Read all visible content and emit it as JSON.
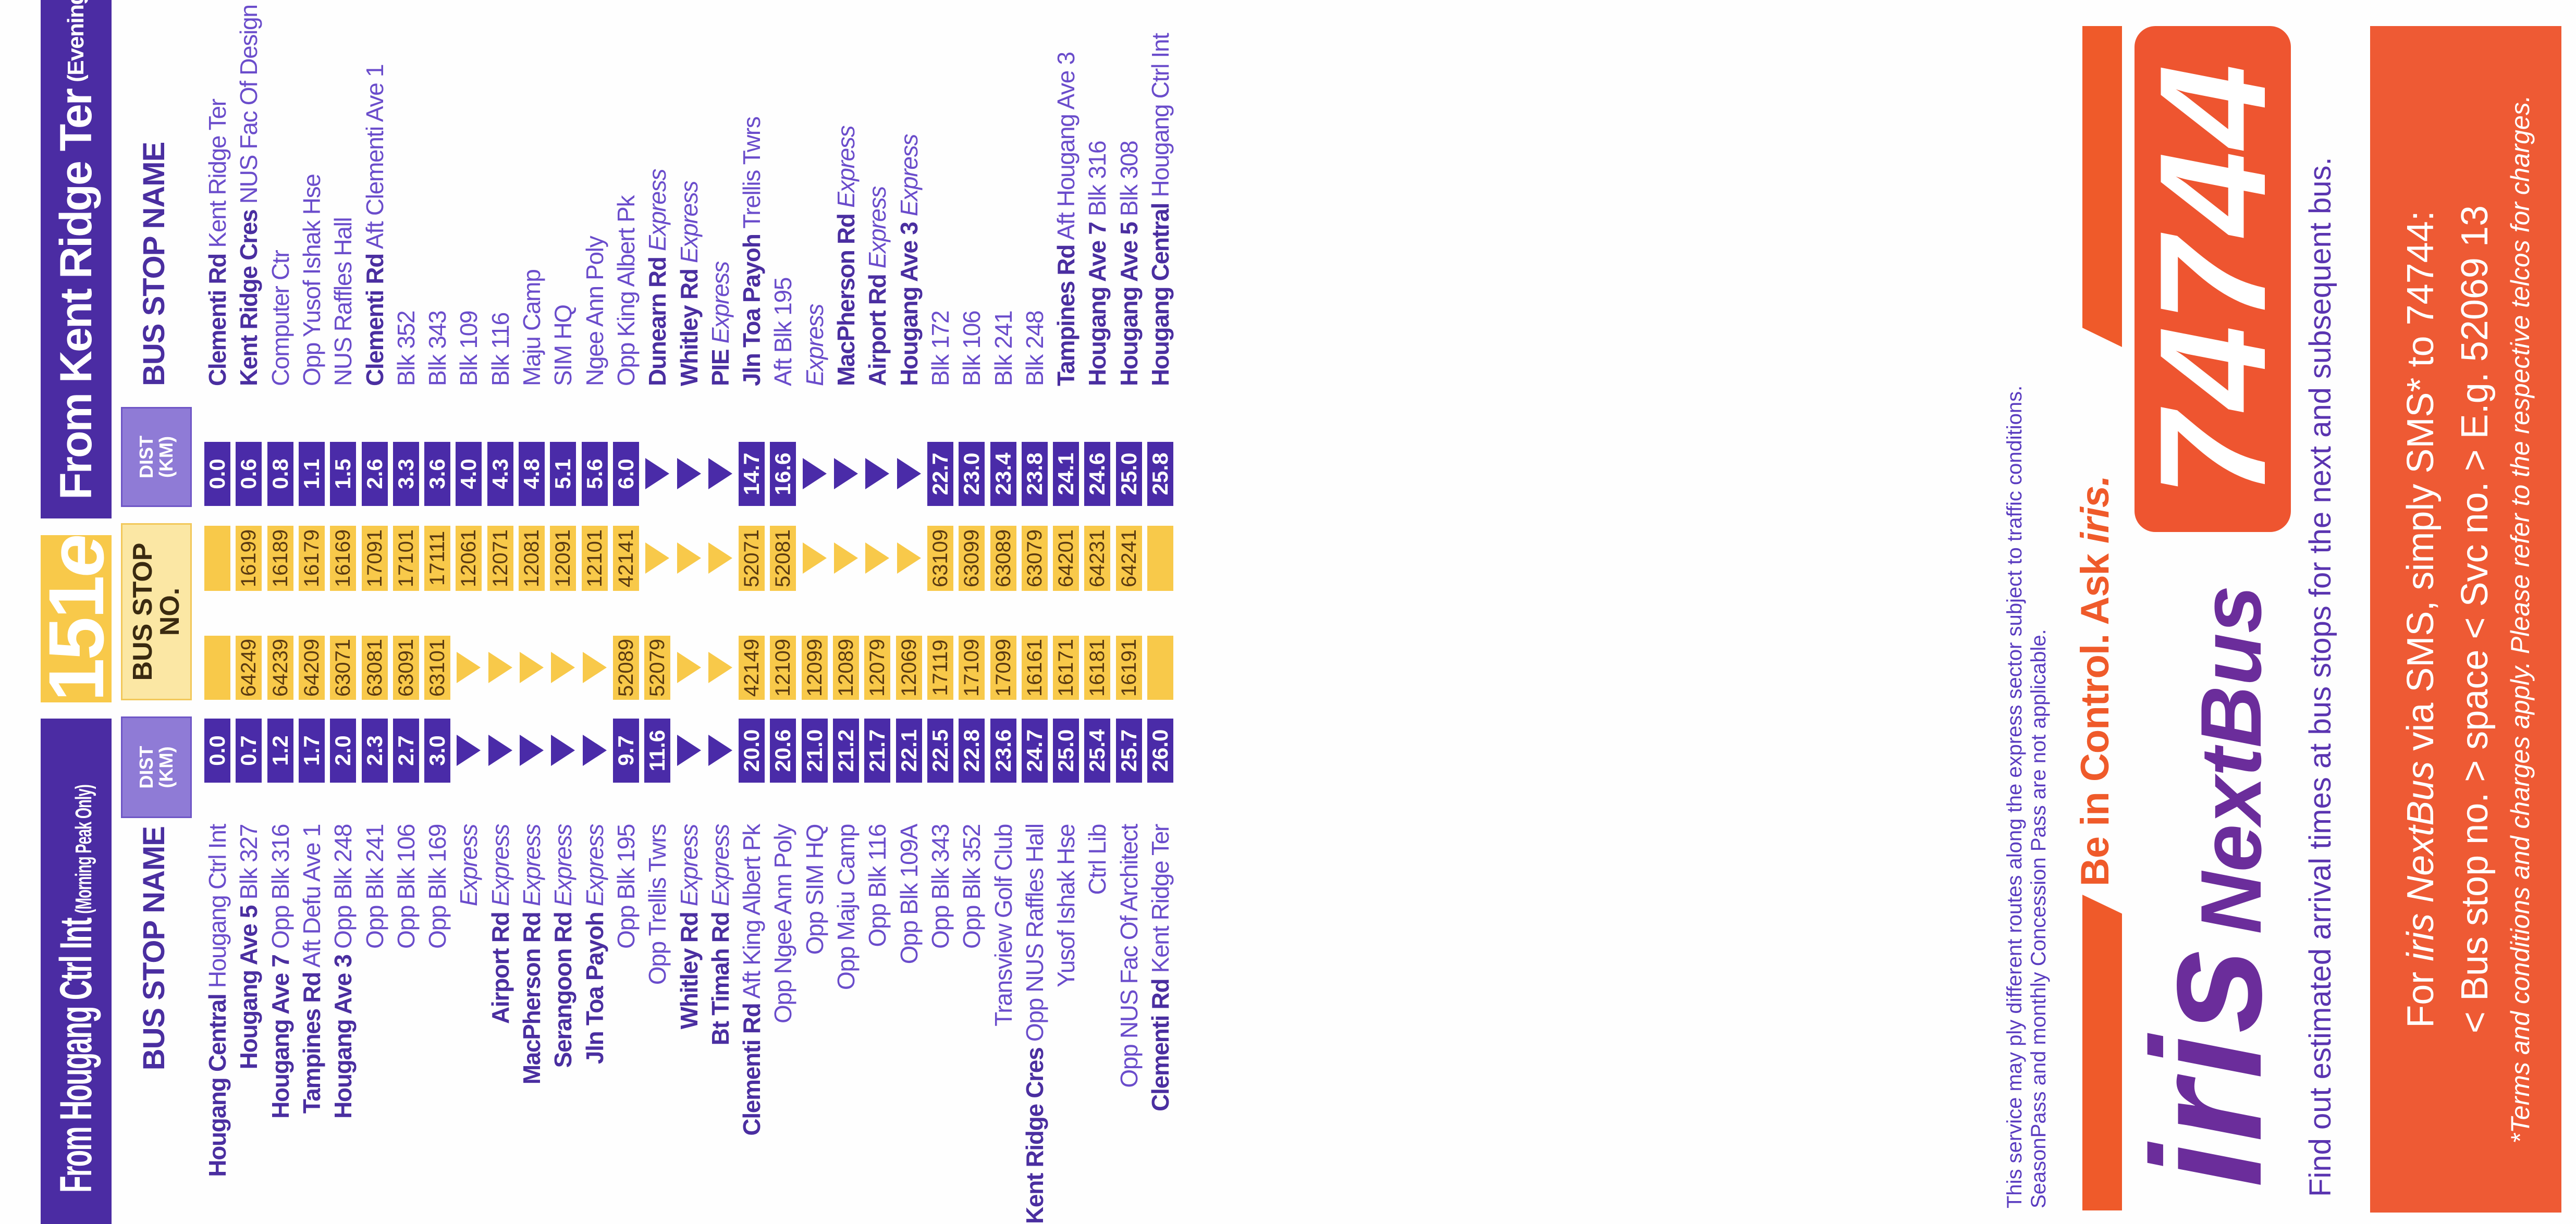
{
  "route": {
    "number": "151",
    "suffix": "e"
  },
  "colors": {
    "purple": "#4b2ca3",
    "yellow": "#f8c94a",
    "orange": "#ee5a34",
    "iris_purple": "#6b2d9b"
  },
  "headers": {
    "bus_stop_name": "BUS STOP NAME",
    "dist_line1": "DIST",
    "dist_line2": "(KM)",
    "stop_no_line1": "BUS STOP",
    "stop_no_line2": "NO."
  },
  "left_table": {
    "title": "From Hougang Ctrl Int",
    "subtitle": "(Morning Peak Only)",
    "rows": [
      {
        "name": {
          "bold": "Hougang Central",
          "text": "Hougang Ctrl Int"
        },
        "dist": "0.0",
        "stop": ""
      },
      {
        "name": {
          "bold": "Hougang Ave 5",
          "text": "Blk 327"
        },
        "dist": "0.7",
        "stop": "64249"
      },
      {
        "name": {
          "bold": "Hougang Ave 7",
          "text": "Opp Blk 316"
        },
        "dist": "1.2",
        "stop": "64239"
      },
      {
        "name": {
          "bold": "Tampines Rd",
          "text": "Aft Defu Ave 1"
        },
        "dist": "1.7",
        "stop": "64209"
      },
      {
        "name": {
          "bold": "Hougang Ave 3",
          "text": "Opp Blk 248"
        },
        "dist": "2.0",
        "stop": "63071"
      },
      {
        "name": {
          "text": "Opp Blk 241"
        },
        "dist": "2.3",
        "stop": "63081"
      },
      {
        "name": {
          "text": "Opp Blk 106"
        },
        "dist": "2.7",
        "stop": "63091"
      },
      {
        "name": {
          "text": "Opp Blk 169"
        },
        "dist": "3.0",
        "stop": "63101"
      },
      {
        "name": {
          "italic": "Express"
        },
        "dist": null,
        "stop": null
      },
      {
        "name": {
          "bold": "Airport Rd",
          "italic": "Express"
        },
        "dist": null,
        "stop": null
      },
      {
        "name": {
          "bold": "MacPherson Rd",
          "italic": "Express"
        },
        "dist": null,
        "stop": null
      },
      {
        "name": {
          "bold": "Serangoon Rd",
          "italic": "Express"
        },
        "dist": null,
        "stop": null
      },
      {
        "name": {
          "bold": "Jln Toa Payoh",
          "italic": "Express"
        },
        "dist": null,
        "stop": null
      },
      {
        "name": {
          "text": "Opp Blk 195"
        },
        "dist": "9.7",
        "stop": "52089"
      },
      {
        "name": {
          "text": "Opp Trellis Twrs"
        },
        "dist": "11.6",
        "stop": "52079"
      },
      {
        "name": {
          "bold": "Whitley Rd",
          "italic": "Express"
        },
        "dist": null,
        "stop": null
      },
      {
        "name": {
          "bold": "Bt Timah Rd",
          "italic": "Express"
        },
        "dist": null,
        "stop": null
      },
      {
        "name": {
          "bold": "Clementi Rd",
          "text": "Aft King Albert Pk"
        },
        "dist": "20.0",
        "stop": "42149"
      },
      {
        "name": {
          "text": "Opp Ngee Ann Poly"
        },
        "dist": "20.6",
        "stop": "12109"
      },
      {
        "name": {
          "text": "Opp SIM HQ"
        },
        "dist": "21.0",
        "stop": "12099"
      },
      {
        "name": {
          "text": "Opp Maju Camp"
        },
        "dist": "21.2",
        "stop": "12089"
      },
      {
        "name": {
          "text": "Opp Blk 116"
        },
        "dist": "21.7",
        "stop": "12079"
      },
      {
        "name": {
          "text": "Opp Blk 109A"
        },
        "dist": "22.1",
        "stop": "12069"
      },
      {
        "name": {
          "text": "Opp Blk 343"
        },
        "dist": "22.5",
        "stop": "17119"
      },
      {
        "name": {
          "text": "Opp Blk 352"
        },
        "dist": "22.8",
        "stop": "17109"
      },
      {
        "name": {
          "text": "Transview Golf Club"
        },
        "dist": "23.6",
        "stop": "17099"
      },
      {
        "name": {
          "bold": "Kent Ridge Cres",
          "text": "Opp NUS Raffles Hall"
        },
        "dist": "24.7",
        "stop": "16161"
      },
      {
        "name": {
          "text": "Yusof Ishak Hse"
        },
        "dist": "25.0",
        "stop": "16171"
      },
      {
        "name": {
          "text": "Ctrl Lib"
        },
        "dist": "25.4",
        "stop": "16181"
      },
      {
        "name": {
          "text": "Opp NUS Fac Of Architect"
        },
        "dist": "25.7",
        "stop": "16191"
      },
      {
        "name": {
          "bold": "Clementi Rd",
          "text": "Kent Ridge Ter"
        },
        "dist": "26.0",
        "stop": ""
      }
    ]
  },
  "right_table": {
    "title": "From Kent Ridge Ter",
    "subtitle": "(Evening Peak Only)",
    "rows": [
      {
        "name": {
          "bold": "Clementi Rd",
          "text": "Kent Ridge Ter"
        },
        "dist": "0.0",
        "stop": ""
      },
      {
        "name": {
          "bold": "Kent Ridge Cres",
          "text": "NUS Fac Of Design & Env"
        },
        "dist": "0.6",
        "stop": "16199"
      },
      {
        "name": {
          "text": "Computer Ctr"
        },
        "dist": "0.8",
        "stop": "16189"
      },
      {
        "name": {
          "text": "Opp Yusof Ishak Hse"
        },
        "dist": "1.1",
        "stop": "16179"
      },
      {
        "name": {
          "text": "NUS Raffles Hall"
        },
        "dist": "1.5",
        "stop": "16169"
      },
      {
        "name": {
          "bold": "Clementi Rd",
          "text": "Aft Clementi Ave 1"
        },
        "dist": "2.6",
        "stop": "17091"
      },
      {
        "name": {
          "text": "Blk 352"
        },
        "dist": "3.3",
        "stop": "17101"
      },
      {
        "name": {
          "text": "Blk 343"
        },
        "dist": "3.6",
        "stop": "17111"
      },
      {
        "name": {
          "text": "Blk 109"
        },
        "dist": "4.0",
        "stop": "12061"
      },
      {
        "name": {
          "text": "Blk 116"
        },
        "dist": "4.3",
        "stop": "12071"
      },
      {
        "name": {
          "text": "Maju Camp"
        },
        "dist": "4.8",
        "stop": "12081"
      },
      {
        "name": {
          "text": "SIM HQ"
        },
        "dist": "5.1",
        "stop": "12091"
      },
      {
        "name": {
          "text": "Ngee Ann Poly"
        },
        "dist": "5.6",
        "stop": "12101"
      },
      {
        "name": {
          "text": "Opp King Albert Pk"
        },
        "dist": "6.0",
        "stop": "42141"
      },
      {
        "name": {
          "bold": "Dunearn Rd",
          "italic": "Express"
        },
        "dist": null,
        "stop": null
      },
      {
        "name": {
          "bold": "Whitley Rd",
          "italic": "Express"
        },
        "dist": null,
        "stop": null
      },
      {
        "name": {
          "bold": "PIE",
          "italic": "Express"
        },
        "dist": null,
        "stop": null
      },
      {
        "name": {
          "bold": "Jln Toa Payoh",
          "text": "Trellis Twrs"
        },
        "dist": "14.7",
        "stop": "52071"
      },
      {
        "name": {
          "text": "Aft Blk 195"
        },
        "dist": "16.6",
        "stop": "52081"
      },
      {
        "name": {
          "italic": "Express"
        },
        "dist": null,
        "stop": null
      },
      {
        "name": {
          "bold": "MacPherson Rd",
          "italic": "Express"
        },
        "dist": null,
        "stop": null
      },
      {
        "name": {
          "bold": "Airport Rd",
          "italic": "Express"
        },
        "dist": null,
        "stop": null
      },
      {
        "name": {
          "bold": "Hougang Ave 3",
          "italic": "Express"
        },
        "dist": null,
        "stop": null
      },
      {
        "name": {
          "text": "Blk 172"
        },
        "dist": "22.7",
        "stop": "63109"
      },
      {
        "name": {
          "text": "Blk 106"
        },
        "dist": "23.0",
        "stop": "63099"
      },
      {
        "name": {
          "text": "Blk 241"
        },
        "dist": "23.4",
        "stop": "63089"
      },
      {
        "name": {
          "text": "Blk 248"
        },
        "dist": "23.8",
        "stop": "63079"
      },
      {
        "name": {
          "bold": "Tampines Rd",
          "text": "Aft Hougang Ave 3"
        },
        "dist": "24.1",
        "stop": "64201"
      },
      {
        "name": {
          "bold": "Hougang Ave 7",
          "text": "Blk 316"
        },
        "dist": "24.6",
        "stop": "64231"
      },
      {
        "name": {
          "bold": "Hougang Ave 5",
          "text": "Blk 308"
        },
        "dist": "25.0",
        "stop": "64241"
      },
      {
        "name": {
          "bold": "Hougang Central",
          "text": "Hougang Ctrl Int"
        },
        "dist": "25.8",
        "stop": ""
      }
    ]
  },
  "notes": {
    "line1": "This service may ply different routes along the express sector subject to traffic conditions.",
    "line2": "SeasonPass and monthly Concession Pass are not applicable."
  },
  "iris_ad": {
    "tagline_a": "Be in Control. Ask ",
    "tagline_b": "iris.",
    "logo_iris": "iris",
    "logo_nextbus": "NextBus",
    "sms_number": "74744",
    "find_out": "Find out estimated arrival times at bus stops for the next and subsequent bus.",
    "sms_line1_a": "For ",
    "sms_line1_b": "iris NextBus",
    "sms_line1_c": " via SMS, simply SMS* to 74744:",
    "sms_line2": "< Bus stop no. > space < Svc no. > E.g. 52069 13",
    "sms_terms": "*Terms and conditions and charges apply. Please refer to the respective telcos for charges."
  }
}
